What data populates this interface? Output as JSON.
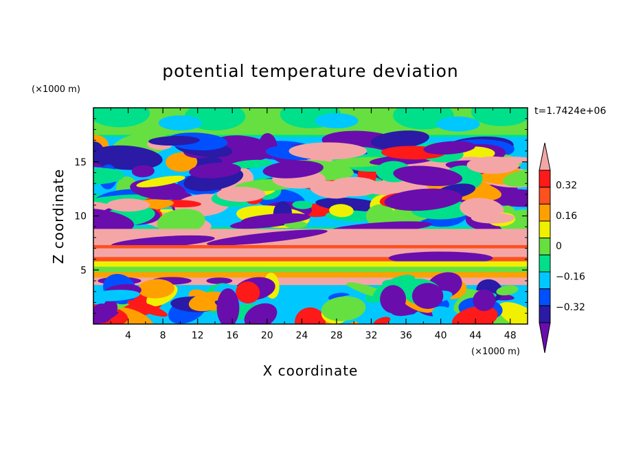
{
  "chart_data": {
    "type": "heatmap",
    "title": "potential temperature deviation",
    "xlabel": "X coordinate",
    "ylabel": "Z coordinate",
    "x_unit": "(×1000 m)",
    "y_unit": "(×1000 m)",
    "time_label": "t=1.7424e+06",
    "xlim": [
      0,
      50
    ],
    "ylim": [
      0,
      20
    ],
    "x_ticks": [
      4,
      8,
      12,
      16,
      20,
      24,
      28,
      32,
      36,
      40,
      44,
      48
    ],
    "x_tick_labels": [
      "4",
      "8",
      "12",
      "16",
      "20",
      "24",
      "28",
      "32",
      "36",
      "40",
      "44",
      "48"
    ],
    "y_ticks": [
      5,
      10,
      15
    ],
    "y_tick_labels": [
      "5",
      "10",
      "15"
    ],
    "colorbar": {
      "levels": [
        -0.4,
        -0.32,
        -0.24,
        -0.16,
        -0.08,
        0,
        0.08,
        0.16,
        0.24,
        0.32,
        0.4
      ],
      "tick_values": [
        0.32,
        0.16,
        0,
        -0.16,
        -0.32
      ],
      "tick_labels": [
        "0.32",
        "0.16",
        "0",
        "−0.16",
        "−0.32"
      ],
      "colors": [
        "#6a0dad",
        "#2a1aa6",
        "#0050ff",
        "#00c8ff",
        "#00e08a",
        "#66e040",
        "#f0f000",
        "#ffa000",
        "#ff5020",
        "#ff1a1a",
        "#f4a6a6"
      ],
      "extend": "both"
    }
  },
  "colors": {
    "purple": "#6a0dad",
    "dark_blue": "#2a1aa6",
    "blue": "#0050ff",
    "cyan": "#00c8ff",
    "green": "#00e08a",
    "light_green": "#66e040",
    "yellow": "#f0f000",
    "orange": "#ffa000",
    "red_orange": "#ff5020",
    "red": "#ff1a1a",
    "pink": "#f4a6a6"
  }
}
